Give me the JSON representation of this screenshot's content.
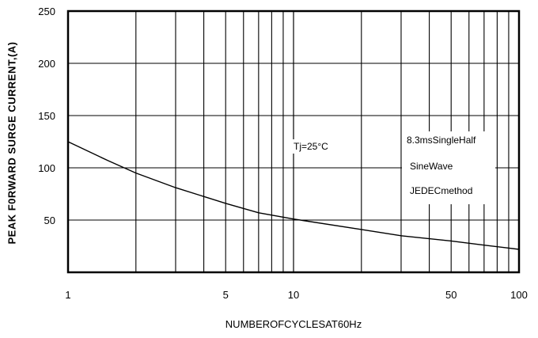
{
  "chart_data": {
    "type": "line",
    "title": "",
    "xlabel": "NUMBEROFCYCLESAT60Hz",
    "ylabel": "PEAK F0RWARD SURGE CURRENT,(A)",
    "x_scale": "log",
    "xlim": [
      1,
      100
    ],
    "ylim": [
      0,
      250
    ],
    "x_ticks": [
      1,
      5,
      10,
      50,
      100
    ],
    "x_tick_labels": [
      "1",
      "5",
      "10",
      "50",
      "100"
    ],
    "y_ticks": [
      50,
      100,
      150,
      200,
      250
    ],
    "y_tick_labels": [
      "50",
      "100",
      "150",
      "200",
      "250"
    ],
    "grid": true,
    "series": [
      {
        "x": [
          1,
          1.5,
          2,
          3,
          5,
          7,
          10,
          20,
          30,
          50,
          70,
          100
        ],
        "y": [
          125,
          107,
          95,
          81,
          66,
          57,
          51,
          41,
          35,
          30,
          26,
          22
        ]
      }
    ],
    "annotations": [
      "Tj=25°C",
      "8.3msSingleHalf",
      "SineWave",
      "JEDECmethod"
    ]
  }
}
